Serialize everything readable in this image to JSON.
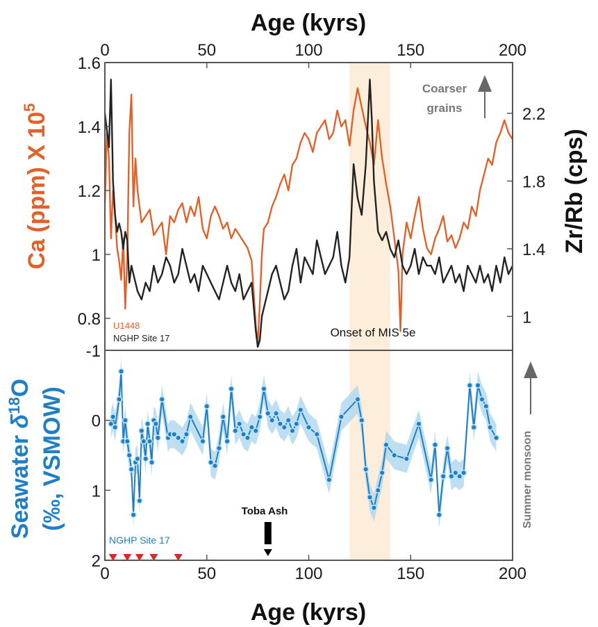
{
  "chart_data": [
    {
      "type": "line",
      "panel": "top",
      "xlabel": "Age (kyrs)",
      "ylabel_left": "Ca (ppm) X 10",
      "ylabel_left_exp": "5",
      "ylabel_right": "Zr/Rb (cps)",
      "xlim": [
        0,
        200
      ],
      "ylim_left": [
        0.7,
        1.6
      ],
      "ylim_right": [
        0.8,
        2.5
      ],
      "x_ticks": [
        0,
        50,
        100,
        150,
        200
      ],
      "y_ticks_left": [
        "0.8",
        "1",
        "1.2",
        "1.4",
        "1.6"
      ],
      "y_ticks_right": [
        "1",
        "1.4",
        "1.8",
        "2.2"
      ],
      "annotations": {
        "coarser": "Coarser",
        "grains": "grains",
        "onset": "Onset of MIS 5e",
        "shading_range": [
          120,
          140
        ]
      },
      "series": [
        {
          "name": "U1448",
          "color": "#e0622a",
          "axis": "left",
          "x": [
            0,
            1,
            2,
            3,
            4,
            5,
            6,
            7,
            8,
            9,
            10,
            11,
            12,
            13,
            14,
            15,
            16,
            18,
            20,
            22,
            24,
            26,
            28,
            30,
            32,
            34,
            36,
            38,
            40,
            42,
            44,
            46,
            48,
            50,
            52,
            54,
            56,
            58,
            60,
            62,
            64,
            66,
            68,
            70,
            72,
            73,
            74,
            75,
            76,
            77,
            78,
            80,
            82,
            84,
            86,
            88,
            90,
            92,
            94,
            96,
            98,
            100,
            102,
            104,
            106,
            108,
            110,
            112,
            114,
            116,
            118,
            120,
            122,
            124,
            126,
            128,
            130,
            132,
            134,
            136,
            138,
            140,
            142,
            144,
            145,
            146,
            148,
            150,
            152,
            154,
            156,
            158,
            160,
            162,
            164,
            166,
            168,
            170,
            172,
            174,
            176,
            178,
            180,
            182,
            184,
            186,
            188,
            190,
            192,
            194,
            196,
            198,
            200
          ],
          "y": [
            1.16,
            1.38,
            1.3,
            1.05,
            1.2,
            1.12,
            1.02,
            0.98,
            0.92,
            1.05,
            0.83,
            1.0,
            1.38,
            1.5,
            1.15,
            1.3,
            1.2,
            1.1,
            1.12,
            1.14,
            1.06,
            1.08,
            1.1,
            1.0,
            1.12,
            1.1,
            1.14,
            1.16,
            1.1,
            1.15,
            1.12,
            1.18,
            1.08,
            1.05,
            1.12,
            1.15,
            1.12,
            1.08,
            1.1,
            1.05,
            1.08,
            1.06,
            1.04,
            1.02,
            0.98,
            0.88,
            0.78,
            0.72,
            0.85,
            1.0,
            1.08,
            1.1,
            1.15,
            1.18,
            1.22,
            1.25,
            1.2,
            1.28,
            1.3,
            1.35,
            1.38,
            1.36,
            1.32,
            1.38,
            1.4,
            1.42,
            1.36,
            1.38,
            1.45,
            1.4,
            1.42,
            1.34,
            1.45,
            1.52,
            1.46,
            1.4,
            1.35,
            1.28,
            1.42,
            1.3,
            1.22,
            1.15,
            1.05,
            0.95,
            0.76,
            1.0,
            1.1,
            1.05,
            1.12,
            1.18,
            1.08,
            1.02,
            1.0,
            1.05,
            1.08,
            1.12,
            1.04,
            1.06,
            1.02,
            1.05,
            1.1,
            1.08,
            1.15,
            1.12,
            1.2,
            1.25,
            1.3,
            1.28,
            1.35,
            1.38,
            1.42,
            1.38,
            1.36
          ]
        },
        {
          "name": "NGHP Site 17",
          "color": "#222222",
          "axis": "right",
          "x": [
            0,
            2,
            3,
            4,
            5,
            6,
            7,
            8,
            9,
            10,
            11,
            12,
            13,
            14,
            16,
            18,
            20,
            22,
            24,
            26,
            28,
            30,
            32,
            34,
            36,
            38,
            40,
            42,
            44,
            46,
            48,
            50,
            52,
            54,
            56,
            58,
            60,
            62,
            64,
            66,
            68,
            70,
            72,
            74,
            75,
            76,
            77,
            78,
            80,
            82,
            84,
            86,
            88,
            90,
            92,
            94,
            96,
            98,
            100,
            102,
            104,
            106,
            108,
            110,
            112,
            114,
            116,
            118,
            120,
            122,
            124,
            126,
            128,
            130,
            131,
            132,
            134,
            136,
            138,
            140,
            142,
            144,
            146,
            148,
            150,
            152,
            154,
            156,
            158,
            160,
            162,
            164,
            166,
            168,
            170,
            172,
            174,
            176,
            178,
            180,
            182,
            184,
            186,
            188,
            190,
            192,
            194,
            196,
            198,
            200
          ],
          "y": [
            2.2,
            2.0,
            2.4,
            1.8,
            1.6,
            1.5,
            1.55,
            1.5,
            1.4,
            1.5,
            1.45,
            1.2,
            1.3,
            1.25,
            1.15,
            1.1,
            1.2,
            1.15,
            1.3,
            1.2,
            1.25,
            1.35,
            1.3,
            1.2,
            1.25,
            1.4,
            1.3,
            1.2,
            1.25,
            1.15,
            1.3,
            1.25,
            1.2,
            1.15,
            1.1,
            1.2,
            1.3,
            1.2,
            1.15,
            1.25,
            1.1,
            1.15,
            1.2,
            0.92,
            0.82,
            0.86,
            1.0,
            1.05,
            1.15,
            1.25,
            1.3,
            1.2,
            1.1,
            1.15,
            1.3,
            1.4,
            1.2,
            1.35,
            1.3,
            1.25,
            1.45,
            1.35,
            1.25,
            1.3,
            1.35,
            1.5,
            1.3,
            1.2,
            1.35,
            1.9,
            1.7,
            1.6,
            1.9,
            2.4,
            2.15,
            1.8,
            1.5,
            1.45,
            1.5,
            1.4,
            1.35,
            1.45,
            1.3,
            1.25,
            1.3,
            1.4,
            1.25,
            1.35,
            1.3,
            1.3,
            1.25,
            1.35,
            1.2,
            1.25,
            1.3,
            1.2,
            1.25,
            1.15,
            1.3,
            1.25,
            1.2,
            1.3,
            1.2,
            1.25,
            1.15,
            1.3,
            1.2,
            1.35,
            1.25,
            1.3
          ]
        }
      ]
    },
    {
      "type": "line",
      "panel": "bottom",
      "xlabel": "Age (kyrs)",
      "ylabel_prefix": "Seawater ",
      "ylabel_delta": "δ",
      "ylabel_sup": "18",
      "ylabel_suffix": "O",
      "ylabel_line2": "(‰, VSMOW)",
      "ylabel_right": "Summer monsoon",
      "xlim": [
        0,
        200
      ],
      "ylim": [
        2,
        -1
      ],
      "y_inverted": true,
      "x_ticks": [
        0,
        50,
        100,
        150,
        200
      ],
      "y_ticks": [
        "-1",
        "0",
        "1",
        "2"
      ],
      "annotations": {
        "toba": "Toba Ash",
        "toba_x": 80,
        "triangles_x": [
          4,
          11,
          17,
          24,
          36
        ]
      },
      "series": [
        {
          "name": "NGHP Site 17",
          "color": "#1f7fc4",
          "band_color": "#a8d4ee",
          "uncertainty": 0.2,
          "x": [
            3,
            4,
            5,
            7,
            8,
            9,
            10,
            11,
            12,
            13,
            14,
            15,
            16,
            17,
            18,
            19,
            20,
            21,
            22,
            23,
            24,
            25,
            26,
            28,
            31,
            32,
            34,
            36,
            38,
            40,
            42,
            48,
            50,
            52,
            54,
            56,
            58,
            60,
            62,
            64,
            66,
            68,
            70,
            72,
            74,
            76,
            78,
            80,
            82,
            84,
            86,
            88,
            90,
            92,
            94,
            96,
            100,
            104,
            110,
            116,
            124,
            126,
            128,
            130,
            132,
            134,
            136,
            138,
            142,
            148,
            154,
            160,
            162,
            164,
            166,
            168,
            170,
            172,
            174,
            176,
            179,
            181,
            183,
            185,
            187,
            189,
            192
          ],
          "y": [
            0.05,
            -0.05,
            0.1,
            -0.3,
            -0.7,
            0.3,
            0.0,
            0.3,
            0.5,
            0.7,
            1.35,
            0.6,
            0.55,
            1.15,
            0.15,
            0.3,
            0.55,
            0.05,
            0.3,
            0.6,
            0.0,
            0.05,
            0.25,
            -0.3,
            0.25,
            0.2,
            0.2,
            0.25,
            0.3,
            0.2,
            -0.05,
            0.3,
            -0.2,
            0.6,
            0.65,
            0.4,
            -0.05,
            0.3,
            -0.45,
            0.15,
            0.05,
            0.2,
            0.25,
            0.1,
            0.15,
            -0.05,
            -0.45,
            -0.1,
            0.0,
            -0.1,
            0.05,
            0.1,
            0.0,
            0.15,
            0.05,
            -0.15,
            0.1,
            0.2,
            0.85,
            -0.05,
            -0.3,
            0.0,
            0.7,
            1.1,
            1.25,
            1.0,
            0.75,
            0.35,
            0.5,
            0.55,
            0.05,
            0.85,
            0.35,
            1.35,
            0.8,
            0.4,
            0.8,
            0.75,
            0.8,
            0.75,
            -0.5,
            0.1,
            -0.5,
            -0.3,
            -0.2,
            0.1,
            0.25
          ]
        }
      ]
    }
  ]
}
